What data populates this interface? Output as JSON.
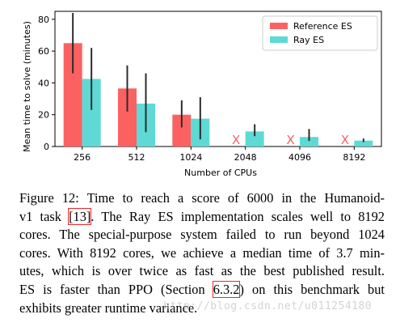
{
  "chart_data": {
    "type": "bar",
    "categories": [
      "256",
      "512",
      "1024",
      "2048",
      "4096",
      "8192"
    ],
    "series": [
      {
        "name": "Reference ES",
        "color": "#fc6162",
        "values": [
          65,
          36.5,
          20,
          null,
          null,
          null
        ],
        "err_low": [
          46,
          22,
          12,
          null,
          null,
          null
        ],
        "err_high": [
          84,
          51,
          29,
          null,
          null,
          null
        ],
        "failed_marker": [
          false,
          false,
          false,
          true,
          true,
          true
        ]
      },
      {
        "name": "Ray ES",
        "color": "#5ed9d5",
        "values": [
          42.5,
          27,
          17.5,
          9.5,
          6,
          3.7
        ],
        "err_low": [
          23,
          9,
          4.5,
          6.5,
          3.5,
          2.8
        ],
        "err_high": [
          62,
          46,
          31,
          14,
          11,
          5
        ]
      }
    ],
    "failed_marker_glyph": "X",
    "xlabel": "Number of CPUs",
    "ylabel": "Mean time to solve (minutes)",
    "ylim": [
      0,
      85
    ],
    "yticks": [
      0,
      20,
      40,
      60,
      80
    ],
    "legend_position": "top-right",
    "grid": false
  },
  "caption": {
    "label": "Figure 12:",
    "lines": [
      [
        "Time to reach a score of 6000 in the Humanoid-"
      ],
      [
        "v1 task ",
        "[13]",
        ". The Ray ES implementation scales well to 8192"
      ],
      [
        "cores. The special-purpose system failed to run beyond 1024"
      ],
      [
        "cores. With 8192 cores, we achieve a median time of 3.7 min-"
      ],
      [
        "utes, which is over twice as fast as the best published result."
      ],
      [
        "ES is faster than PPO (Section ",
        "6.3.2",
        ") on this benchmark but"
      ],
      [
        "exhibits greater runtime variance."
      ]
    ]
  },
  "watermark": "http://blog.csdn.net/u011254180"
}
